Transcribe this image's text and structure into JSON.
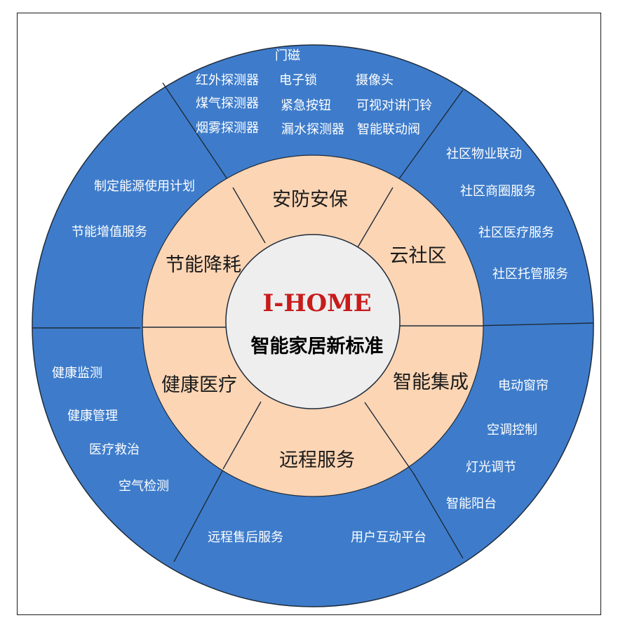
{
  "colors": {
    "outer_ring": "#3e7ccb",
    "middle_ring": "#fcd5b4",
    "center": "#eeeeee",
    "title_red": "#c81b1b",
    "lines": "#1f2b3a"
  },
  "center": {
    "title": "I-HOME",
    "subtitle": "智能家居新标准"
  },
  "categories": {
    "security": "安防安保",
    "cloud_community": "云社区",
    "smart_integration": "智能集成",
    "remote_service": "远程服务",
    "health_medical": "健康医疗",
    "energy_saving": "节能降耗"
  },
  "items": {
    "security": [
      "门磁",
      "红外探测器",
      "电子锁",
      "摄像头",
      "煤气探测器",
      "紧急按钮",
      "可视对讲门铃",
      "烟雾探测器",
      "漏水探测器",
      "智能联动阀"
    ],
    "cloud_community": [
      "社区物业联动",
      "社区商圈服务",
      "社区医疗服务",
      "社区托管服务"
    ],
    "smart_integration": [
      "电动窗帘",
      "空调控制",
      "灯光调节",
      "智能阳台"
    ],
    "remote_service": [
      "远程售后服务",
      "用户互动平台"
    ],
    "health_medical": [
      "健康监测",
      "健康管理",
      "医疗救治",
      "空气检测"
    ],
    "energy_saving": [
      "制定能源使用计划",
      "节能增值服务"
    ]
  }
}
